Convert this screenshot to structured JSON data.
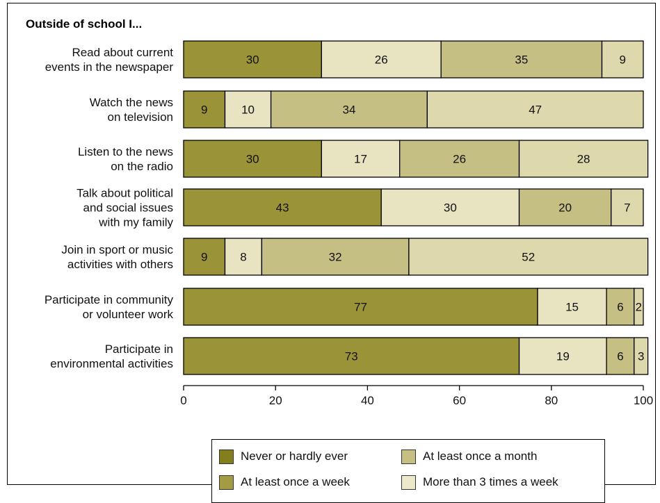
{
  "chart_data": {
    "type": "bar",
    "orientation": "horizontal",
    "stacked": true,
    "title": "Outside of school I...",
    "categories": [
      "Read about current events in the newspaper",
      "Watch the news on television",
      "Listen to the news on the radio",
      "Talk about political and social issues with my family",
      "Join in sport or music activities with others",
      "Participate in community or volunteer work",
      "Participate in environmental activities"
    ],
    "category_lines": [
      [
        "Read about current",
        "events in the newspaper"
      ],
      [
        "Watch the news",
        "on television"
      ],
      [
        "Listen to the news",
        "on the radio"
      ],
      [
        "Talk about political",
        "and social issues",
        "with my family"
      ],
      [
        "Join in sport or music",
        "activities with others"
      ],
      [
        "Participate in community",
        "or volunteer work"
      ],
      [
        "Participate in",
        "environmental activities"
      ]
    ],
    "series": [
      {
        "name": "Never or hardly ever",
        "color": "#9b9338",
        "values": [
          30,
          9,
          30,
          43,
          9,
          77,
          73
        ]
      },
      {
        "name": "More than 3 times a week",
        "color": "#e8e4c2",
        "values": [
          26,
          10,
          17,
          30,
          8,
          15,
          19
        ]
      },
      {
        "name": "At least once a month",
        "color": "#c5bf84",
        "values": [
          35,
          34,
          26,
          20,
          32,
          6,
          6
        ]
      },
      {
        "name": "At least once a week",
        "color": "#ddd9ac",
        "values": [
          9,
          47,
          28,
          7,
          52,
          2,
          3
        ]
      }
    ],
    "xlim": [
      0,
      100
    ],
    "xticks": [
      0,
      20,
      40,
      60,
      80,
      100
    ],
    "legend_position": "bottom"
  },
  "legend": {
    "items": [
      {
        "label": "Never or hardly ever",
        "color": "#857e1c"
      },
      {
        "label": "At least once a month",
        "color": "#c5bf84"
      },
      {
        "label": "At least once a week",
        "color": "#a39c44"
      },
      {
        "label": "More than 3 times a week",
        "color": "#ebe8cb"
      }
    ]
  }
}
